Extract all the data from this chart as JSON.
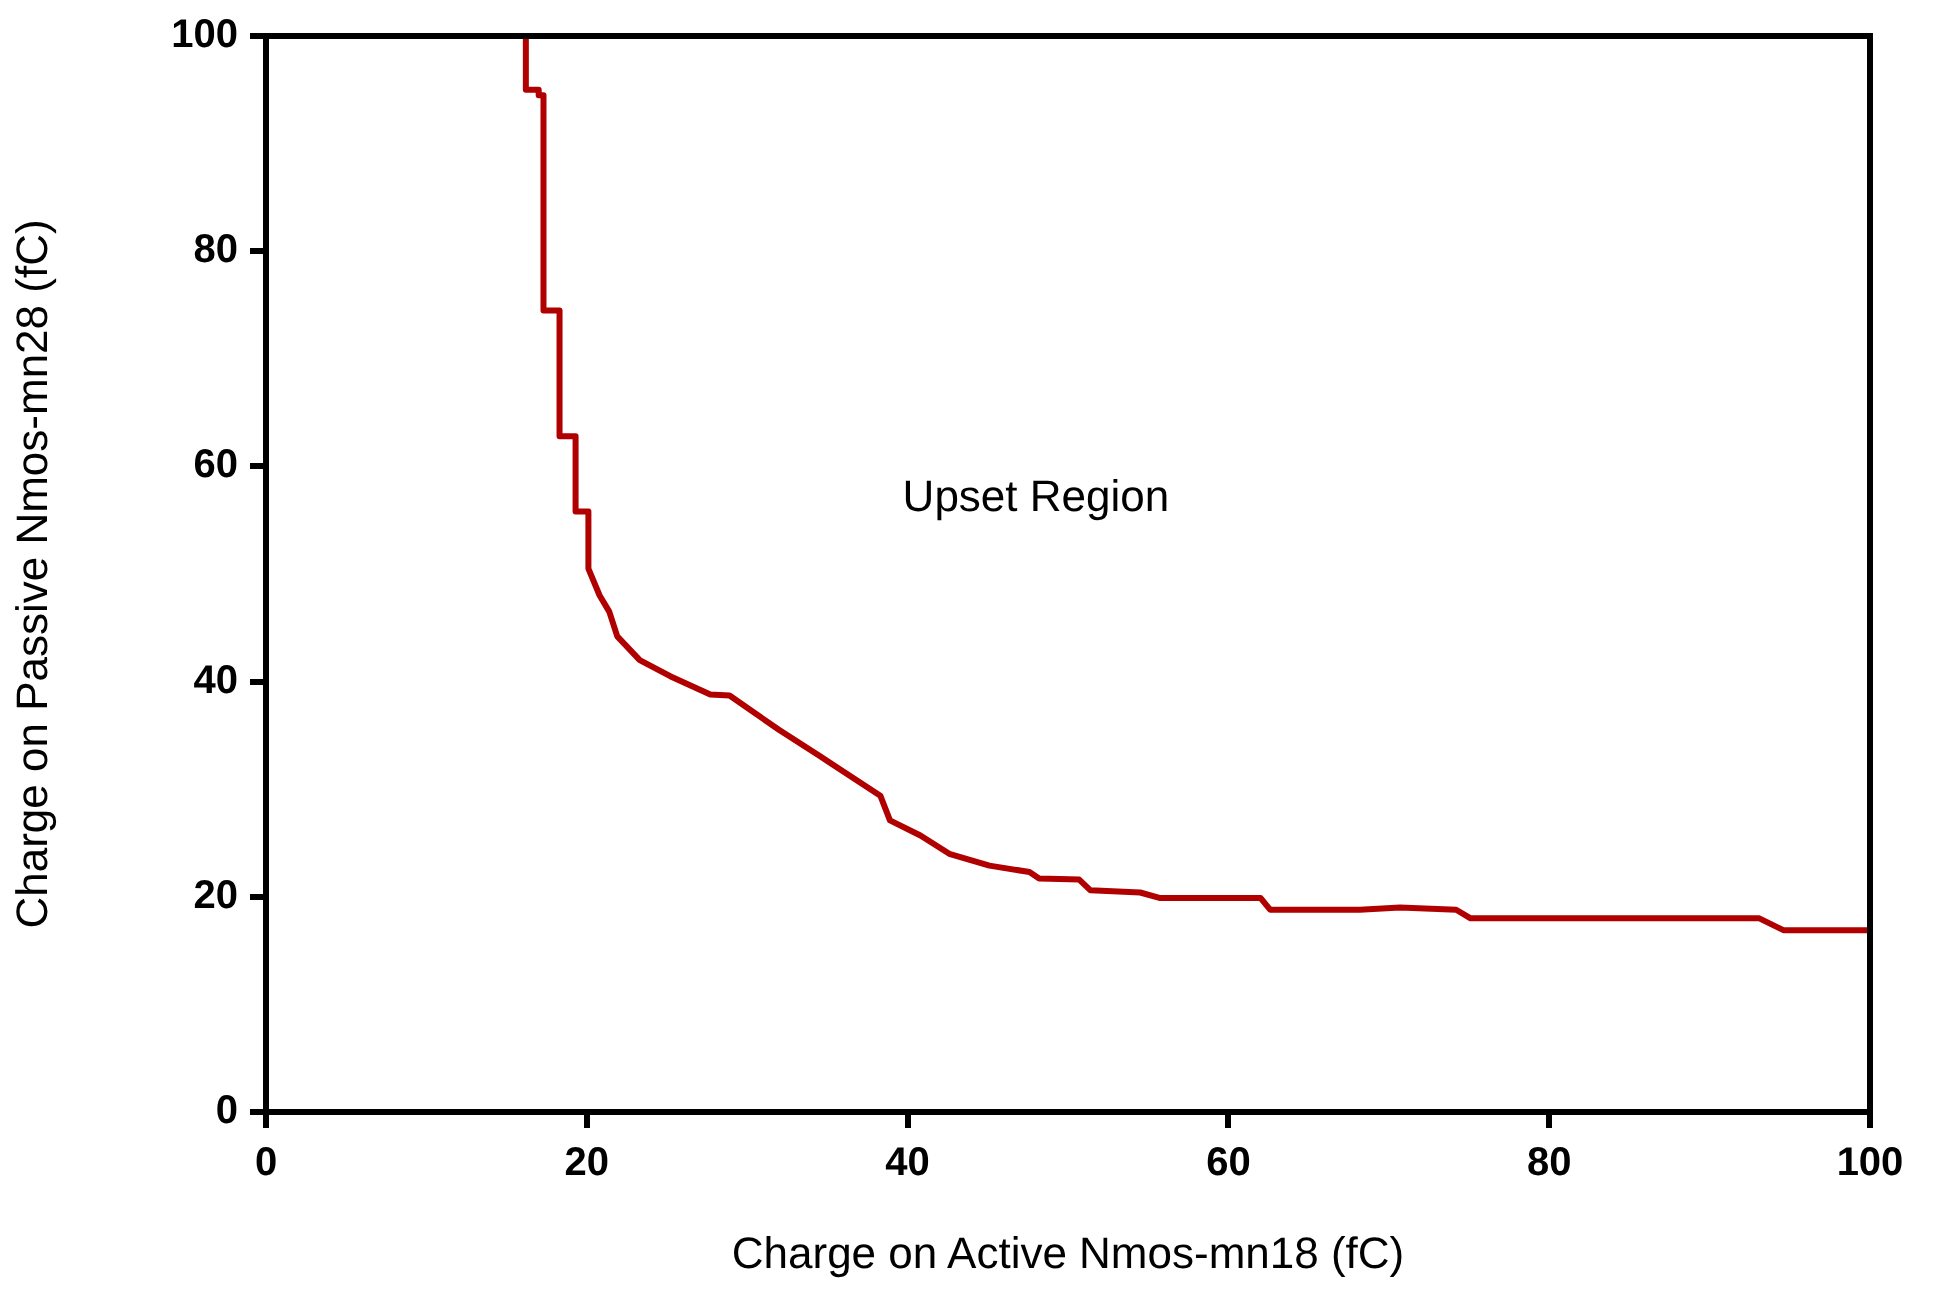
{
  "chart_data": {
    "type": "line",
    "xlabel": "Charge on Active Nmos-mn18 (fC)",
    "ylabel": "Charge on Passive Nmos-mn28 (fC)",
    "annotations": [
      "Upset Region"
    ],
    "xlim": [
      0,
      100
    ],
    "xticks": [
      0,
      20,
      40,
      60,
      80,
      100
    ],
    "ylim": [
      0,
      100
    ],
    "yticks": [
      0,
      20,
      40,
      60,
      80,
      100
    ],
    "grid": false,
    "legend": false,
    "marker": "none",
    "line_style": "solid",
    "series": [
      {
        "color": "#b00000",
        "x": [
          16.2,
          16.2,
          17.0,
          17.0,
          17.3,
          17.3,
          18.3,
          18.3,
          19.3,
          19.3,
          20.1,
          20.1,
          20.8,
          21.4,
          21.9,
          23.3,
          25.2,
          27.7,
          28.9,
          32,
          34.5,
          38.3,
          38.9,
          40.8,
          42.6,
          45.1,
          47.6,
          48.2,
          50.7,
          51.4,
          54.5,
          55.7,
          62,
          62.6,
          68.2,
          70.7,
          74.2,
          75.1,
          93.1,
          94.6,
          100
        ],
        "values": [
          100,
          95,
          95,
          94.5,
          94.5,
          74.5,
          74.5,
          62.8,
          62.8,
          55.8,
          55.8,
          50.5,
          48,
          46.5,
          44.2,
          42,
          40.5,
          38.8,
          38.7,
          35.5,
          33.1,
          29.4,
          27.1,
          25.7,
          24,
          22.9,
          22.3,
          21.7,
          21.6,
          20.6,
          20.4,
          19.9,
          19.9,
          18.8,
          18.8,
          19,
          18.8,
          18,
          18,
          16.9,
          16.9
        ]
      }
    ]
  }
}
